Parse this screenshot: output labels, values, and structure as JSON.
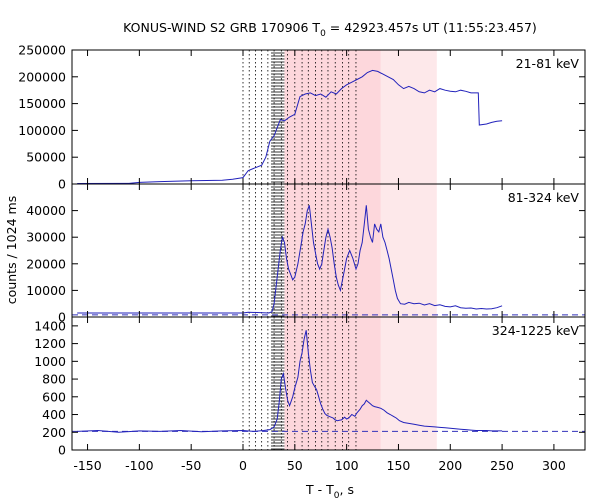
{
  "chart_data": {
    "type": "line",
    "title": "KONUS-WIND S2 GRB 170906 T",
    "title_sub": "0",
    "title_rest": " = 42923.457s UT (11:55:23.457)",
    "xlabel": "T - T",
    "xlabel_sub": "0",
    "xlabel_rest": ", s",
    "ylabel": "counts / 1024 ms",
    "xlim": [
      -165,
      330
    ],
    "x_ticks": [
      -150,
      -100,
      -50,
      0,
      50,
      100,
      150,
      200,
      250,
      300
    ],
    "line_color": "#2222bb",
    "dashed_line_color": "#3333bb",
    "vertical_lines": [
      0,
      6,
      12,
      18,
      24,
      30,
      37,
      43,
      50,
      57,
      63,
      70,
      76,
      82,
      89,
      96,
      102,
      109
    ],
    "shaded_regions": [
      {
        "x0": 40,
        "x1": 133,
        "color": "#fdd7dc"
      },
      {
        "x0": 133,
        "x1": 187,
        "color": "#fde8ea"
      }
    ],
    "hatched_region": {
      "x0": 27,
      "x1": 40
    },
    "panels": [
      {
        "label": "21-81 keV",
        "ylim": [
          0,
          250000
        ],
        "y_ticks": [
          0,
          50000,
          100000,
          150000,
          200000,
          250000
        ],
        "points": [
          [
            -160,
            1000
          ],
          [
            -110,
            1200
          ],
          [
            -100,
            3000
          ],
          [
            -80,
            4500
          ],
          [
            -50,
            6000
          ],
          [
            -20,
            7000
          ],
          [
            -10,
            9000
          ],
          [
            0,
            12000
          ],
          [
            5,
            25000
          ],
          [
            10,
            29000
          ],
          [
            18,
            35000
          ],
          [
            22,
            50000
          ],
          [
            26,
            80000
          ],
          [
            30,
            90000
          ],
          [
            33,
            105000
          ],
          [
            36,
            120000
          ],
          [
            40,
            118000
          ],
          [
            45,
            125000
          ],
          [
            50,
            130000
          ],
          [
            55,
            163000
          ],
          [
            60,
            168000
          ],
          [
            65,
            170000
          ],
          [
            70,
            165000
          ],
          [
            75,
            168000
          ],
          [
            80,
            162000
          ],
          [
            85,
            172000
          ],
          [
            90,
            168000
          ],
          [
            95,
            178000
          ],
          [
            100,
            185000
          ],
          [
            105,
            190000
          ],
          [
            110,
            195000
          ],
          [
            115,
            200000
          ],
          [
            120,
            208000
          ],
          [
            125,
            212000
          ],
          [
            130,
            210000
          ],
          [
            135,
            205000
          ],
          [
            140,
            200000
          ],
          [
            145,
            195000
          ],
          [
            150,
            185000
          ],
          [
            155,
            178000
          ],
          [
            160,
            182000
          ],
          [
            165,
            178000
          ],
          [
            170,
            172000
          ],
          [
            175,
            170000
          ],
          [
            180,
            175000
          ],
          [
            185,
            172000
          ],
          [
            190,
            178000
          ],
          [
            195,
            175000
          ],
          [
            200,
            173000
          ],
          [
            205,
            172000
          ],
          [
            210,
            175000
          ],
          [
            215,
            173000
          ],
          [
            220,
            170000
          ],
          [
            226,
            170000
          ],
          [
            227,
            170000
          ],
          [
            228,
            110000
          ],
          [
            235,
            112000
          ],
          [
            240,
            115000
          ],
          [
            245,
            117000
          ],
          [
            250,
            118000
          ]
        ],
        "baseline": null
      },
      {
        "label": "81-324 keV",
        "ylim": [
          0,
          50000
        ],
        "y_ticks": [
          0,
          10000,
          20000,
          30000,
          40000
        ],
        "points": [
          [
            -160,
            1500
          ],
          [
            -100,
            1500
          ],
          [
            -50,
            1500
          ],
          [
            0,
            1500
          ],
          [
            5,
            1800
          ],
          [
            25,
            1500
          ],
          [
            28,
            2000
          ],
          [
            30,
            5000
          ],
          [
            33,
            15000
          ],
          [
            36,
            25000
          ],
          [
            38,
            30000
          ],
          [
            40,
            28000
          ],
          [
            42,
            22000
          ],
          [
            44,
            18000
          ],
          [
            46,
            16000
          ],
          [
            48,
            14000
          ],
          [
            50,
            15000
          ],
          [
            53,
            20000
          ],
          [
            56,
            27000
          ],
          [
            58,
            32000
          ],
          [
            60,
            35000
          ],
          [
            62,
            40000
          ],
          [
            64,
            42000
          ],
          [
            66,
            35000
          ],
          [
            68,
            28000
          ],
          [
            70,
            24000
          ],
          [
            72,
            20000
          ],
          [
            74,
            18000
          ],
          [
            76,
            20000
          ],
          [
            78,
            25000
          ],
          [
            80,
            30000
          ],
          [
            82,
            33000
          ],
          [
            84,
            30000
          ],
          [
            86,
            26000
          ],
          [
            88,
            20000
          ],
          [
            90,
            15000
          ],
          [
            92,
            12000
          ],
          [
            94,
            10000
          ],
          [
            96,
            14000
          ],
          [
            98,
            18000
          ],
          [
            100,
            22000
          ],
          [
            103,
            25000
          ],
          [
            106,
            22000
          ],
          [
            109,
            18000
          ],
          [
            111,
            20000
          ],
          [
            113,
            25000
          ],
          [
            115,
            28000
          ],
          [
            117,
            35000
          ],
          [
            119,
            42000
          ],
          [
            121,
            33000
          ],
          [
            123,
            30000
          ],
          [
            125,
            28000
          ],
          [
            127,
            35000
          ],
          [
            129,
            33000
          ],
          [
            131,
            32000
          ],
          [
            133,
            35000
          ],
          [
            135,
            30000
          ],
          [
            137,
            28000
          ],
          [
            139,
            25000
          ],
          [
            141,
            22000
          ],
          [
            143,
            18000
          ],
          [
            145,
            14000
          ],
          [
            147,
            10000
          ],
          [
            149,
            7000
          ],
          [
            152,
            5000
          ],
          [
            156,
            4800
          ],
          [
            160,
            5500
          ],
          [
            165,
            5000
          ],
          [
            170,
            5200
          ],
          [
            175,
            4500
          ],
          [
            180,
            5000
          ],
          [
            185,
            4300
          ],
          [
            190,
            4600
          ],
          [
            195,
            4000
          ],
          [
            200,
            3800
          ],
          [
            205,
            4200
          ],
          [
            210,
            3500
          ],
          [
            215,
            3300
          ],
          [
            220,
            3400
          ],
          [
            225,
            3000
          ],
          [
            230,
            3200
          ],
          [
            235,
            3000
          ],
          [
            240,
            3100
          ],
          [
            245,
            3500
          ],
          [
            250,
            4200
          ]
        ],
        "baseline": 800
      },
      {
        "label": "324-1225 keV",
        "ylim": [
          0,
          1500
        ],
        "y_ticks": [
          0,
          200,
          400,
          600,
          800,
          1000,
          1200,
          1400
        ],
        "points": [
          [
            -160,
            210
          ],
          [
            -140,
            220
          ],
          [
            -120,
            200
          ],
          [
            -100,
            215
          ],
          [
            -80,
            210
          ],
          [
            -60,
            220
          ],
          [
            -40,
            205
          ],
          [
            -20,
            215
          ],
          [
            0,
            220
          ],
          [
            10,
            210
          ],
          [
            20,
            220
          ],
          [
            26,
            230
          ],
          [
            30,
            260
          ],
          [
            33,
            350
          ],
          [
            35,
            550
          ],
          [
            37,
            800
          ],
          [
            39,
            860
          ],
          [
            41,
            700
          ],
          [
            43,
            560
          ],
          [
            45,
            500
          ],
          [
            48,
            600
          ],
          [
            50,
            700
          ],
          [
            53,
            820
          ],
          [
            55,
            1000
          ],
          [
            57,
            1100
          ],
          [
            59,
            1250
          ],
          [
            61,
            1350
          ],
          [
            63,
            1100
          ],
          [
            65,
            900
          ],
          [
            67,
            760
          ],
          [
            69,
            720
          ],
          [
            71,
            680
          ],
          [
            73,
            600
          ],
          [
            75,
            520
          ],
          [
            77,
            460
          ],
          [
            79,
            410
          ],
          [
            81,
            390
          ],
          [
            83,
            380
          ],
          [
            85,
            370
          ],
          [
            87,
            360
          ],
          [
            89,
            340
          ],
          [
            91,
            330
          ],
          [
            93,
            335
          ],
          [
            95,
            340
          ],
          [
            98,
            370
          ],
          [
            100,
            350
          ],
          [
            102,
            360
          ],
          [
            105,
            400
          ],
          [
            108,
            380
          ],
          [
            110,
            420
          ],
          [
            113,
            460
          ],
          [
            115,
            500
          ],
          [
            117,
            520
          ],
          [
            119,
            560
          ],
          [
            121,
            540
          ],
          [
            123,
            520
          ],
          [
            125,
            500
          ],
          [
            127,
            490
          ],
          [
            130,
            480
          ],
          [
            133,
            470
          ],
          [
            136,
            450
          ],
          [
            139,
            420
          ],
          [
            142,
            400
          ],
          [
            145,
            380
          ],
          [
            148,
            360
          ],
          [
            151,
            330
          ],
          [
            155,
            310
          ],
          [
            160,
            300
          ],
          [
            165,
            290
          ],
          [
            170,
            280
          ],
          [
            175,
            270
          ],
          [
            180,
            265
          ],
          [
            185,
            260
          ],
          [
            190,
            255
          ],
          [
            195,
            250
          ],
          [
            200,
            245
          ],
          [
            205,
            240
          ],
          [
            210,
            235
          ],
          [
            215,
            230
          ],
          [
            220,
            225
          ],
          [
            225,
            220
          ],
          [
            230,
            220
          ],
          [
            235,
            220
          ],
          [
            240,
            215
          ],
          [
            245,
            215
          ],
          [
            250,
            215
          ]
        ],
        "baseline": 210
      }
    ]
  }
}
